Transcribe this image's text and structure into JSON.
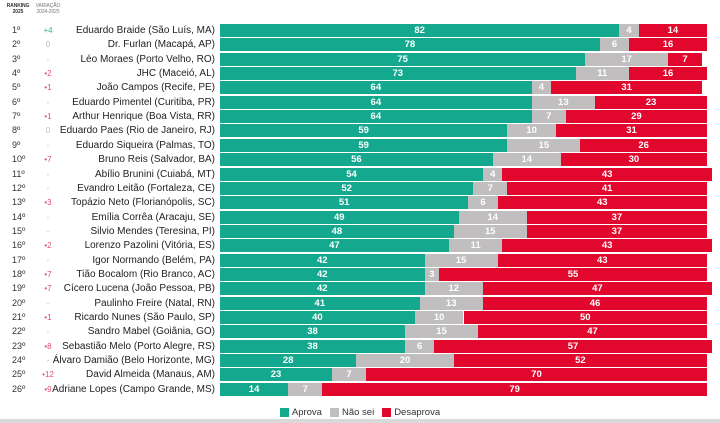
{
  "header": {
    "ranking_label_1": "RANKING",
    "ranking_label_2": "2025",
    "variation_label_1": "VARIAÇÃO",
    "variation_label_2": "2024-2025"
  },
  "colors": {
    "aprova": "#14a98e",
    "nao_sei": "#c0bebe",
    "desaprova": "#e2072c",
    "var_up": "#26b59b",
    "var_down": "#e24d6f",
    "var_neutral": "#bbbbbb"
  },
  "chart_data": {
    "type": "bar",
    "orientation": "horizontal",
    "stacked": true,
    "title": "",
    "xlabel": "",
    "ylabel": "",
    "xlim": [
      0,
      100
    ],
    "legend_position": "bottom-center",
    "legend": [
      "Aprova",
      "Não sei",
      "Desaprova"
    ],
    "categories": [
      "Eduardo Braide (São Luís, MA)",
      "Dr. Furlan (Macapá, AP)",
      "Léo Moraes (Porto Velho, RO)",
      "JHC (Maceió, AL)",
      "João Campos (Recife, PE)",
      "Eduardo Pimentel (Curitiba, PR)",
      "Arthur Henrique (Boa Vista, RR)",
      "Eduardo Paes (Rio de Janeiro, RJ)",
      "Eduardo Siqueira (Palmas, TO)",
      "Bruno Reis (Salvador, BA)",
      "Abílio Brunini (Cuiabá, MT)",
      "Evandro Leitão (Fortaleza, CE)",
      "Topázio Neto (Florianópolis, SC)",
      "Emília Corrêa (Aracaju, SE)",
      "Silvio Mendes (Teresina, PI)",
      "Lorenzo Pazolini (Vitória, ES)",
      "Igor Normando (Belém, PA)",
      "Tião Bocalom (Rio Branco, AC)",
      "Cícero Lucena (João Pessoa, PB)",
      "Paulinho Freire (Natal, RN)",
      "Ricardo Nunes (São Paulo, SP)",
      "Sandro Mabel (Goiânia, GO)",
      "Sebastião Melo (Porto Alegre, RS)",
      "Álvaro Damião (Belo Horizonte, MG)",
      "David Almeida (Manaus, AM)",
      "Adriane Lopes (Campo Grande, MS)"
    ],
    "ranks": [
      "1º",
      "2º",
      "3º",
      "4º",
      "5º",
      "6º",
      "7º",
      "8º",
      "9º",
      "10º",
      "11º",
      "12º",
      "13º",
      "14º",
      "15º",
      "16º",
      "17º",
      "18º",
      "19º",
      "20º",
      "21º",
      "22º",
      "23º",
      "24º",
      "25º",
      "26º"
    ],
    "variation": [
      {
        "text": "+4",
        "dir": "up"
      },
      {
        "text": "0",
        "dir": "zero"
      },
      {
        "text": "-",
        "dir": "none"
      },
      {
        "text": "•2",
        "dir": "down"
      },
      {
        "text": "•1",
        "dir": "down"
      },
      {
        "text": "-",
        "dir": "none"
      },
      {
        "text": "•1",
        "dir": "down"
      },
      {
        "text": "0",
        "dir": "zero"
      },
      {
        "text": "-",
        "dir": "none"
      },
      {
        "text": "•7",
        "dir": "down"
      },
      {
        "text": "-",
        "dir": "none"
      },
      {
        "text": "-",
        "dir": "none"
      },
      {
        "text": "•3",
        "dir": "down"
      },
      {
        "text": "-",
        "dir": "none"
      },
      {
        "text": "-",
        "dir": "none"
      },
      {
        "text": "•2",
        "dir": "down"
      },
      {
        "text": "-",
        "dir": "none"
      },
      {
        "text": "•7",
        "dir": "down"
      },
      {
        "text": "•7",
        "dir": "down"
      },
      {
        "text": "-",
        "dir": "none"
      },
      {
        "text": "•1",
        "dir": "down"
      },
      {
        "text": "-",
        "dir": "none"
      },
      {
        "text": "•8",
        "dir": "down"
      },
      {
        "text": "-",
        "dir": "none"
      },
      {
        "text": "•12",
        "dir": "down"
      },
      {
        "text": "•9",
        "dir": "down"
      }
    ],
    "series": [
      {
        "name": "Aprova",
        "values": [
          82,
          78,
          75,
          73,
          64,
          64,
          64,
          59,
          59,
          56,
          54,
          52,
          51,
          49,
          48,
          47,
          42,
          42,
          42,
          41,
          40,
          38,
          38,
          28,
          23,
          14
        ]
      },
      {
        "name": "Não sei",
        "values": [
          4,
          6,
          17,
          11,
          4,
          13,
          7,
          10,
          15,
          14,
          4,
          7,
          6,
          14,
          15,
          11,
          15,
          3,
          12,
          13,
          10,
          15,
          6,
          20,
          7,
          7
        ]
      },
      {
        "name": "Desaprova",
        "values": [
          14,
          16,
          7,
          16,
          31,
          23,
          29,
          31,
          26,
          30,
          43,
          41,
          43,
          37,
          37,
          43,
          43,
          55,
          47,
          46,
          50,
          47,
          57,
          52,
          70,
          79
        ]
      }
    ]
  }
}
